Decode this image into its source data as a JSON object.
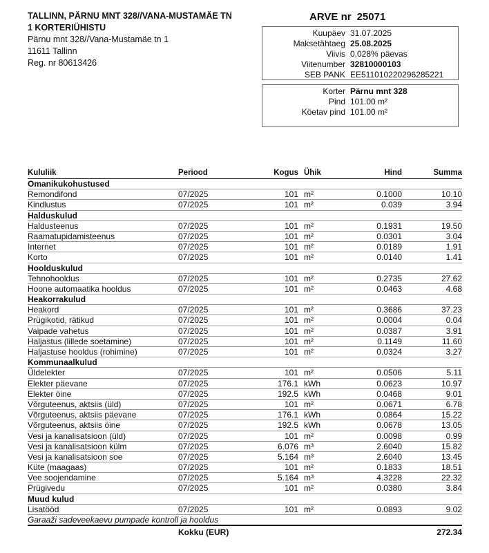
{
  "issuer": {
    "name_line1": "TALLINN, PÄRNU MNT 328//VANA-MUSTAMÄE TN",
    "name_line2": "1 KORTERIÜHISTU",
    "address": "Pärnu mnt 328//Vana-Mustamäe tn 1",
    "city": "11611 Tallinn",
    "reg": "Reg. nr 80613426"
  },
  "invoice": {
    "label": "ARVE nr",
    "number": "25071",
    "details": [
      {
        "label": "Kuupäev",
        "value": "31.07.2025",
        "bold": false
      },
      {
        "label": "Maksetähtaeg",
        "value": "25.08.2025",
        "bold": true
      },
      {
        "label": "Viivis",
        "value": "0.028% päevas",
        "bold": false
      },
      {
        "label": "Viitenumber",
        "value": "32810000103",
        "bold": true
      },
      {
        "label": "SEB PANK",
        "value": "EE511010220296285221",
        "bold": false
      }
    ],
    "apartment": [
      {
        "label": "Korter",
        "value": "Pärnu mnt 328",
        "bold": true
      },
      {
        "label": "",
        "value": "",
        "bold": false
      },
      {
        "label": "Pind",
        "value": "101.00 m²",
        "bold": false
      },
      {
        "label": "Köetav pind",
        "value": "101.00 m²",
        "bold": false
      }
    ]
  },
  "table": {
    "headers": [
      "Kululiik",
      "Periood",
      "Kogus",
      "Ühik",
      "Hind",
      "Summa"
    ],
    "rows": [
      {
        "group": "Omanikukohustused"
      },
      {
        "item": [
          "Remondifond",
          "07/2025",
          "101",
          "m²",
          "0.1000",
          "10.10"
        ]
      },
      {
        "item": [
          "Kindlustus",
          "07/2025",
          "101",
          "m²",
          "0.039",
          "3.94"
        ]
      },
      {
        "group": "Halduskulud"
      },
      {
        "item": [
          "Haldusteenus",
          "07/2025",
          "101",
          "m²",
          "0.1931",
          "19.50"
        ]
      },
      {
        "item": [
          "Raamatupidamisteenus",
          "07/2025",
          "101",
          "m²",
          "0.0301",
          "3.04"
        ]
      },
      {
        "item": [
          "Internet",
          "07/2025",
          "101",
          "m²",
          "0.0189",
          "1.91"
        ]
      },
      {
        "item": [
          "Korto",
          "07/2025",
          "101",
          "m²",
          "0.0140",
          "1.41"
        ]
      },
      {
        "group": "Hoolduskulud"
      },
      {
        "item": [
          "Tehnohooldus",
          "07/2025",
          "101",
          "m²",
          "0.2735",
          "27.62"
        ]
      },
      {
        "item": [
          "Hoone automaatika hooldus",
          "07/2025",
          "101",
          "m²",
          "0.0463",
          "4.68"
        ]
      },
      {
        "group": "Heakorrakulud"
      },
      {
        "item": [
          "Heakord",
          "07/2025",
          "101",
          "m²",
          "0.3686",
          "37.23"
        ]
      },
      {
        "item": [
          "Prügikotid, rätikud",
          "07/2025",
          "101",
          "m²",
          "0.0004",
          "0.04"
        ]
      },
      {
        "item": [
          "Vaipade vahetus",
          "07/2025",
          "101",
          "m²",
          "0.0387",
          "3.91"
        ]
      },
      {
        "item": [
          "Haljastus (lillede soetamine)",
          "07/2025",
          "101",
          "m²",
          "0.1149",
          "11.60"
        ]
      },
      {
        "item": [
          "Haljastuse hooldus (rohimine)",
          "07/2025",
          "101",
          "m²",
          "0.0324",
          "3.27"
        ]
      },
      {
        "group": "Kommunaalkulud"
      },
      {
        "item": [
          "Üldelekter",
          "07/2025",
          "101",
          "m²",
          "0.0506",
          "5.11"
        ]
      },
      {
        "item": [
          "Elekter päevane",
          "07/2025",
          "176.1",
          "kWh",
          "0.0623",
          "10.97"
        ]
      },
      {
        "item": [
          "Elekter öine",
          "07/2025",
          "192.5",
          "kWh",
          "0.0468",
          "9.01"
        ]
      },
      {
        "item": [
          "Võrguteenus, aktsiis (üld)",
          "07/2025",
          "101",
          "m²",
          "0.0671",
          "6.78"
        ]
      },
      {
        "item": [
          "Võrguteenus, aktsiis päevane",
          "07/2025",
          "176.1",
          "kWh",
          "0.0864",
          "15.22"
        ]
      },
      {
        "item": [
          "Võrguteenus, aktsiis öine",
          "07/2025",
          "192.5",
          "kWh",
          "0.0678",
          "13.05"
        ]
      },
      {
        "item": [
          "Vesi ja kanalisatsioon (üld)",
          "07/2025",
          "101",
          "m²",
          "0.0098",
          "0.99"
        ]
      },
      {
        "item": [
          "Vesi ja kanalisatsioon külm",
          "07/2025",
          "6.076",
          "m³",
          "2.6040",
          "15.82"
        ]
      },
      {
        "item": [
          "Vesi ja kanalisatsioon soe",
          "07/2025",
          "5.164",
          "m³",
          "2.6040",
          "13.45"
        ]
      },
      {
        "item": [
          "Küte (maagaas)",
          "07/2025",
          "101",
          "m²",
          "0.1833",
          "18.51"
        ]
      },
      {
        "item": [
          "Vee soojendamine",
          "07/2025",
          "5.164",
          "m³",
          "4.3228",
          "22.32"
        ]
      },
      {
        "item": [
          "Prügivedu",
          "07/2025",
          "101",
          "m²",
          "0.0380",
          "3.84"
        ]
      },
      {
        "group": "Muud kulud"
      },
      {
        "item": [
          "Lisatööd",
          "07/2025",
          "101",
          "m²",
          "0.0893",
          "9.02"
        ]
      }
    ],
    "note": "Garaaži sadeveekaevu pumpade kontroll ja hooldus",
    "total_label": "Kokku (EUR)",
    "total": "272.34"
  }
}
